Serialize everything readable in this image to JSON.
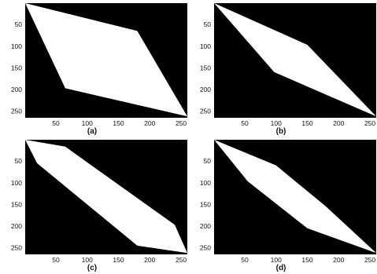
{
  "colors": {
    "background": "#000000",
    "region": "#ffffff",
    "text": "#111111"
  },
  "axes": {
    "x_ticks": [
      {
        "value": 50,
        "label": "50"
      },
      {
        "value": 100,
        "label": "100"
      },
      {
        "value": 150,
        "label": "150"
      },
      {
        "value": 200,
        "label": "200"
      },
      {
        "value": 250,
        "label": "250"
      }
    ],
    "y_ticks": [
      {
        "value": 50,
        "label": "50"
      },
      {
        "value": 100,
        "label": "100"
      },
      {
        "value": 150,
        "label": "150"
      },
      {
        "value": 200,
        "label": "200"
      },
      {
        "value": 250,
        "label": "250"
      }
    ],
    "x_range": [
      1,
      260
    ],
    "y_range": [
      1,
      265
    ]
  },
  "panels": [
    {
      "caption": "(a)",
      "polygon": [
        [
          1,
          1
        ],
        [
          180,
          65
        ],
        [
          260,
          262
        ],
        [
          65,
          197
        ]
      ]
    },
    {
      "caption": "(b)",
      "polygon": [
        [
          1,
          1
        ],
        [
          150,
          97
        ],
        [
          260,
          262
        ],
        [
          97,
          160
        ]
      ]
    },
    {
      "caption": "(c)",
      "polygon": [
        [
          1,
          1
        ],
        [
          65,
          17
        ],
        [
          240,
          197
        ],
        [
          260,
          262
        ],
        [
          180,
          245
        ],
        [
          20,
          55
        ]
      ]
    },
    {
      "caption": "(d)",
      "polygon": [
        [
          1,
          1
        ],
        [
          100,
          60
        ],
        [
          180,
          155
        ],
        [
          260,
          262
        ],
        [
          150,
          205
        ],
        [
          55,
          97
        ]
      ]
    }
  ]
}
